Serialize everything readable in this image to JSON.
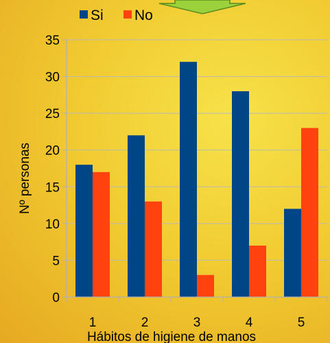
{
  "chart_data": {
    "type": "bar",
    "categories": [
      "1",
      "2",
      "3",
      "4",
      "5"
    ],
    "series": [
      {
        "name": "Si",
        "color": "#004586",
        "values": [
          18,
          22,
          32,
          28,
          12
        ]
      },
      {
        "name": "No",
        "color": "#ff420e",
        "values": [
          17,
          13,
          3,
          7,
          23
        ]
      }
    ],
    "xlabel": "Hábitos de higiene de manos",
    "ylabel": "Nº personas",
    "ylim": [
      0,
      35
    ],
    "yticks": [
      0,
      5,
      10,
      15,
      20,
      25,
      30,
      35
    ],
    "grid": true,
    "legend": "top-left"
  },
  "decor": {
    "arrow_color": "#9bd23c"
  }
}
